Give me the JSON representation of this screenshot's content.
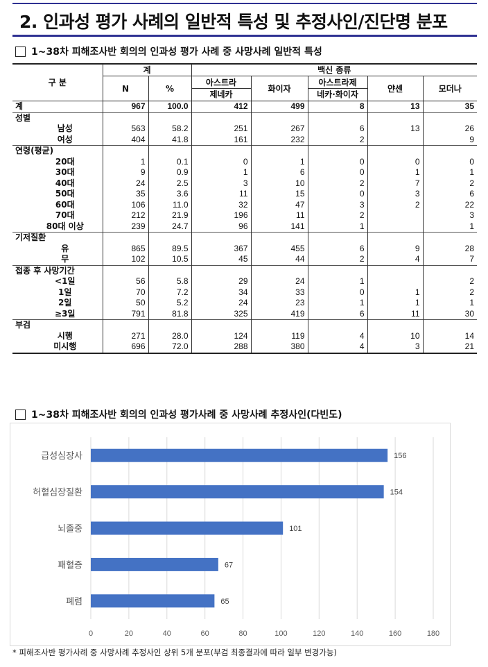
{
  "page_title": "2. 인과성 평가 사례의 일반적 특성 및 추정사인/진단명 분포",
  "table_heading": "1~38차 피해조사반 회의의 인과성 평가 사례 중 사망사례 일반적 특성",
  "chart_heading": "1~38차 피해조사반 회의의 인과성 평가사례 중 사망사례 추정사인(다빈도)",
  "table": {
    "header_category": "구 분",
    "header_total": "계",
    "header_vaccine": "백신 종류",
    "header_n": "N",
    "header_pct": "%",
    "vaccines": [
      {
        "line1": "아스트라",
        "line2": "제네카"
      },
      {
        "line1": "화이자",
        "line2": ""
      },
      {
        "line1": "아스트라제",
        "line2": "네카·화이자"
      },
      {
        "line1": "얀센",
        "line2": ""
      },
      {
        "line1": "모더나",
        "line2": ""
      }
    ],
    "rows": [
      {
        "label": "계",
        "type": "total",
        "values": [
          "967",
          "100.0",
          "412",
          "499",
          "8",
          "13",
          "35"
        ]
      },
      {
        "label": "성별",
        "type": "group",
        "values": [
          "",
          "",
          "",
          "",
          "",
          "",
          ""
        ]
      },
      {
        "label": "남성",
        "type": "sub",
        "values": [
          "563",
          "58.2",
          "251",
          "267",
          "6",
          "13",
          "26"
        ]
      },
      {
        "label": "여성",
        "type": "sub",
        "values": [
          "404",
          "41.8",
          "161",
          "232",
          "2",
          "",
          "9"
        ]
      },
      {
        "label": "연령(평균)",
        "type": "group",
        "values": [
          "",
          "",
          "",
          "",
          "",
          "",
          ""
        ]
      },
      {
        "label": "20대",
        "type": "sub",
        "values": [
          "1",
          "0.1",
          "0",
          "1",
          "0",
          "0",
          "0"
        ]
      },
      {
        "label": "30대",
        "type": "sub",
        "values": [
          "9",
          "0.9",
          "1",
          "6",
          "0",
          "1",
          "1"
        ]
      },
      {
        "label": "40대",
        "type": "sub",
        "values": [
          "24",
          "2.5",
          "3",
          "10",
          "2",
          "7",
          "2"
        ]
      },
      {
        "label": "50대",
        "type": "sub",
        "values": [
          "35",
          "3.6",
          "11",
          "15",
          "0",
          "3",
          "6"
        ]
      },
      {
        "label": "60대",
        "type": "sub",
        "values": [
          "106",
          "11.0",
          "32",
          "47",
          "3",
          "2",
          "22"
        ]
      },
      {
        "label": "70대",
        "type": "sub",
        "values": [
          "212",
          "21.9",
          "196",
          "11",
          "2",
          "",
          "3"
        ]
      },
      {
        "label": "80대 이상",
        "type": "sub",
        "values": [
          "239",
          "24.7",
          "96",
          "141",
          "1",
          "",
          "1"
        ]
      },
      {
        "label": "기저질환",
        "type": "group",
        "values": [
          "",
          "",
          "",
          "",
          "",
          "",
          ""
        ]
      },
      {
        "label": "유",
        "type": "sub",
        "values": [
          "865",
          "89.5",
          "367",
          "455",
          "6",
          "9",
          "28"
        ]
      },
      {
        "label": "무",
        "type": "sub",
        "values": [
          "102",
          "10.5",
          "45",
          "44",
          "2",
          "4",
          "7"
        ]
      },
      {
        "label": "접종 후 사망기간",
        "type": "group",
        "values": [
          "",
          "",
          "",
          "",
          "",
          "",
          ""
        ]
      },
      {
        "label": "<1일",
        "type": "sub",
        "values": [
          "56",
          "5.8",
          "29",
          "24",
          "1",
          "",
          "2"
        ]
      },
      {
        "label": "1일",
        "type": "sub",
        "values": [
          "70",
          "7.2",
          "34",
          "33",
          "0",
          "1",
          "2"
        ]
      },
      {
        "label": "2일",
        "type": "sub",
        "values": [
          "50",
          "5.2",
          "24",
          "23",
          "1",
          "1",
          "1"
        ]
      },
      {
        "label": "≥3일",
        "type": "sub",
        "values": [
          "791",
          "81.8",
          "325",
          "419",
          "6",
          "11",
          "30"
        ]
      },
      {
        "label": "부검",
        "type": "group",
        "values": [
          "",
          "",
          "",
          "",
          "",
          "",
          ""
        ]
      },
      {
        "label": "시행",
        "type": "sub",
        "values": [
          "271",
          "28.0",
          "124",
          "119",
          "4",
          "10",
          "14"
        ]
      },
      {
        "label": "미시행",
        "type": "sub",
        "values": [
          "696",
          "72.0",
          "288",
          "380",
          "4",
          "3",
          "21"
        ]
      }
    ]
  },
  "chart_data": {
    "type": "bar",
    "orientation": "horizontal",
    "categories": [
      "급성심장사",
      "허혈심장질환",
      "뇌졸중",
      "패혈증",
      "폐렴"
    ],
    "values": [
      156,
      154,
      101,
      67,
      65
    ],
    "xlim": [
      0,
      180
    ],
    "xticks": [
      "0",
      "20",
      "40",
      "60",
      "80",
      "100",
      "120",
      "140",
      "160",
      "180"
    ],
    "grid": true,
    "bar_color": "#4472c4",
    "title": "",
    "xlabel": "",
    "ylabel": ""
  },
  "footnote": "* 피해조사반 평가사례 중 사망사례 추정사인 상위 5개 분포(부검 최종결과에 따라 일부 변경가능)",
  "colors": {
    "accent": "#2e3192",
    "bar": "#4472c4"
  }
}
